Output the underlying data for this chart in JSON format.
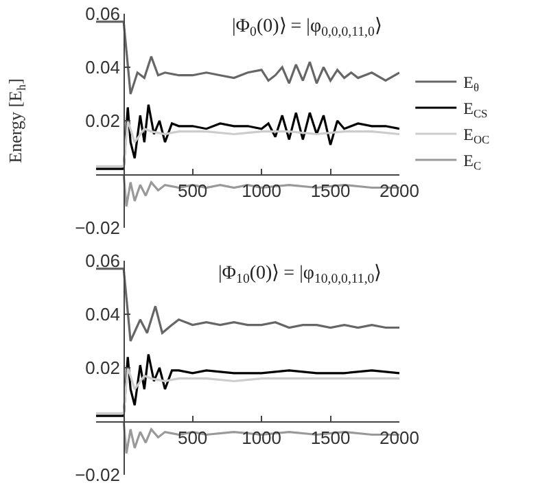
{
  "chart_data": [
    {
      "type": "line",
      "ylabel": "Energy [E$_{h}$]",
      "annotations": [
        "|Φ$_{0}$(0)⟩ = |φ$_{0,0,0,11,0}$⟩"
      ],
      "xlim": [
        -200,
        2000
      ],
      "ylim": [
        -0.02,
        0.06
      ],
      "xticks": [
        500,
        1000,
        1500,
        2000
      ],
      "yticks": [
        -0.02,
        0.02,
        0.04,
        0.06
      ],
      "grid": false,
      "legend": "right",
      "marker": "none",
      "line_style": "solid",
      "series": [
        {
          "name": "E$_{θ}$",
          "color": "#666666",
          "x": [
            -200,
            0,
            50,
            100,
            150,
            200,
            250,
            300,
            400,
            500,
            600,
            700,
            800,
            900,
            1000,
            1050,
            1100,
            1150,
            1200,
            1250,
            1300,
            1350,
            1400,
            1450,
            1500,
            1550,
            1600,
            1650,
            1700,
            1800,
            1900,
            2000
          ],
          "values": [
            0.057,
            0.057,
            0.03,
            0.038,
            0.036,
            0.044,
            0.037,
            0.038,
            0.037,
            0.037,
            0.038,
            0.037,
            0.036,
            0.038,
            0.039,
            0.035,
            0.037,
            0.04,
            0.034,
            0.041,
            0.035,
            0.042,
            0.034,
            0.04,
            0.035,
            0.039,
            0.036,
            0.038,
            0.036,
            0.038,
            0.035,
            0.038
          ]
        },
        {
          "name": "E$_{CS}$",
          "color": "#000000",
          "x": [
            -200,
            0,
            30,
            50,
            80,
            120,
            150,
            180,
            220,
            260,
            300,
            350,
            400,
            500,
            600,
            700,
            800,
            900,
            1000,
            1050,
            1100,
            1150,
            1200,
            1250,
            1300,
            1350,
            1400,
            1450,
            1500,
            1550,
            1600,
            1700,
            1800,
            1900,
            2000
          ],
          "values": [
            0.002,
            0.002,
            0.025,
            0.012,
            0.006,
            0.022,
            0.012,
            0.026,
            0.015,
            0.02,
            0.012,
            0.019,
            0.018,
            0.018,
            0.017,
            0.019,
            0.018,
            0.018,
            0.017,
            0.019,
            0.014,
            0.022,
            0.013,
            0.023,
            0.013,
            0.023,
            0.015,
            0.022,
            0.011,
            0.02,
            0.017,
            0.019,
            0.018,
            0.018,
            0.017
          ]
        },
        {
          "name": "E$_{OC}$",
          "color": "#cccccc",
          "x": [
            -200,
            0,
            30,
            80,
            150,
            200,
            300,
            400,
            600,
            800,
            1000,
            1200,
            1400,
            1600,
            1800,
            2000
          ],
          "values": [
            0.003,
            0.003,
            0.02,
            0.012,
            0.017,
            0.016,
            0.015,
            0.016,
            0.016,
            0.015,
            0.016,
            0.016,
            0.015,
            0.016,
            0.016,
            0.015
          ]
        },
        {
          "name": "E$_{C}$",
          "color": "#999999",
          "x": [
            0,
            20,
            50,
            80,
            120,
            160,
            200,
            250,
            300,
            400,
            500,
            600,
            700,
            800,
            900,
            1000,
            1200,
            1400,
            1600,
            1800,
            2000
          ],
          "values": [
            0,
            -0.012,
            -0.003,
            -0.01,
            -0.004,
            -0.008,
            -0.003,
            -0.006,
            -0.004,
            -0.005,
            -0.004,
            -0.005,
            -0.004,
            -0.005,
            -0.004,
            -0.005,
            -0.004,
            -0.005,
            -0.004,
            -0.005,
            -0.005
          ]
        }
      ]
    },
    {
      "type": "line",
      "annotations": [
        "|Φ$_{10}$(0)⟩ = |φ$_{10,0,0,11,0}$⟩"
      ],
      "xlim": [
        -200,
        2000
      ],
      "ylim": [
        -0.02,
        0.06
      ],
      "xticks": [
        500,
        1000,
        1500,
        2000
      ],
      "yticks": [
        -0.02,
        0.02,
        0.04,
        0.06
      ],
      "grid": false,
      "legend": false,
      "marker": "none",
      "line_style": "solid",
      "series": [
        {
          "color": "#666666",
          "x": [
            -200,
            0,
            50,
            120,
            170,
            230,
            280,
            350,
            400,
            500,
            600,
            700,
            800,
            900,
            1000,
            1100,
            1200,
            1300,
            1400,
            1500,
            1600,
            1700,
            1800,
            1900,
            2000
          ],
          "values": [
            0.057,
            0.057,
            0.03,
            0.038,
            0.033,
            0.043,
            0.033,
            0.036,
            0.038,
            0.036,
            0.037,
            0.036,
            0.037,
            0.036,
            0.036,
            0.037,
            0.035,
            0.036,
            0.036,
            0.035,
            0.036,
            0.035,
            0.036,
            0.035,
            0.035
          ]
        },
        {
          "color": "#000000",
          "x": [
            -200,
            0,
            30,
            50,
            80,
            120,
            150,
            180,
            220,
            260,
            300,
            350,
            400,
            500,
            600,
            800,
            1000,
            1200,
            1400,
            1600,
            1800,
            2000
          ],
          "values": [
            0.002,
            0.002,
            0.024,
            0.012,
            0.006,
            0.021,
            0.012,
            0.025,
            0.015,
            0.02,
            0.012,
            0.019,
            0.019,
            0.018,
            0.019,
            0.018,
            0.018,
            0.019,
            0.018,
            0.018,
            0.019,
            0.018
          ]
        },
        {
          "color": "#cccccc",
          "x": [
            -200,
            0,
            30,
            80,
            150,
            200,
            300,
            400,
            600,
            800,
            1000,
            1200,
            1400,
            1600,
            1800,
            2000
          ],
          "values": [
            0.003,
            0.003,
            0.02,
            0.012,
            0.017,
            0.016,
            0.015,
            0.016,
            0.016,
            0.015,
            0.016,
            0.016,
            0.016,
            0.016,
            0.016,
            0.016
          ]
        },
        {
          "color": "#999999",
          "x": [
            0,
            20,
            50,
            80,
            120,
            160,
            200,
            250,
            300,
            400,
            500,
            600,
            800,
            1000,
            1200,
            1400,
            1600,
            1800,
            2000
          ],
          "values": [
            0,
            -0.012,
            -0.003,
            -0.01,
            -0.004,
            -0.008,
            -0.003,
            -0.006,
            -0.004,
            -0.005,
            -0.004,
            -0.005,
            -0.004,
            -0.005,
            -0.004,
            -0.005,
            -0.004,
            -0.005,
            -0.005
          ]
        }
      ]
    }
  ]
}
